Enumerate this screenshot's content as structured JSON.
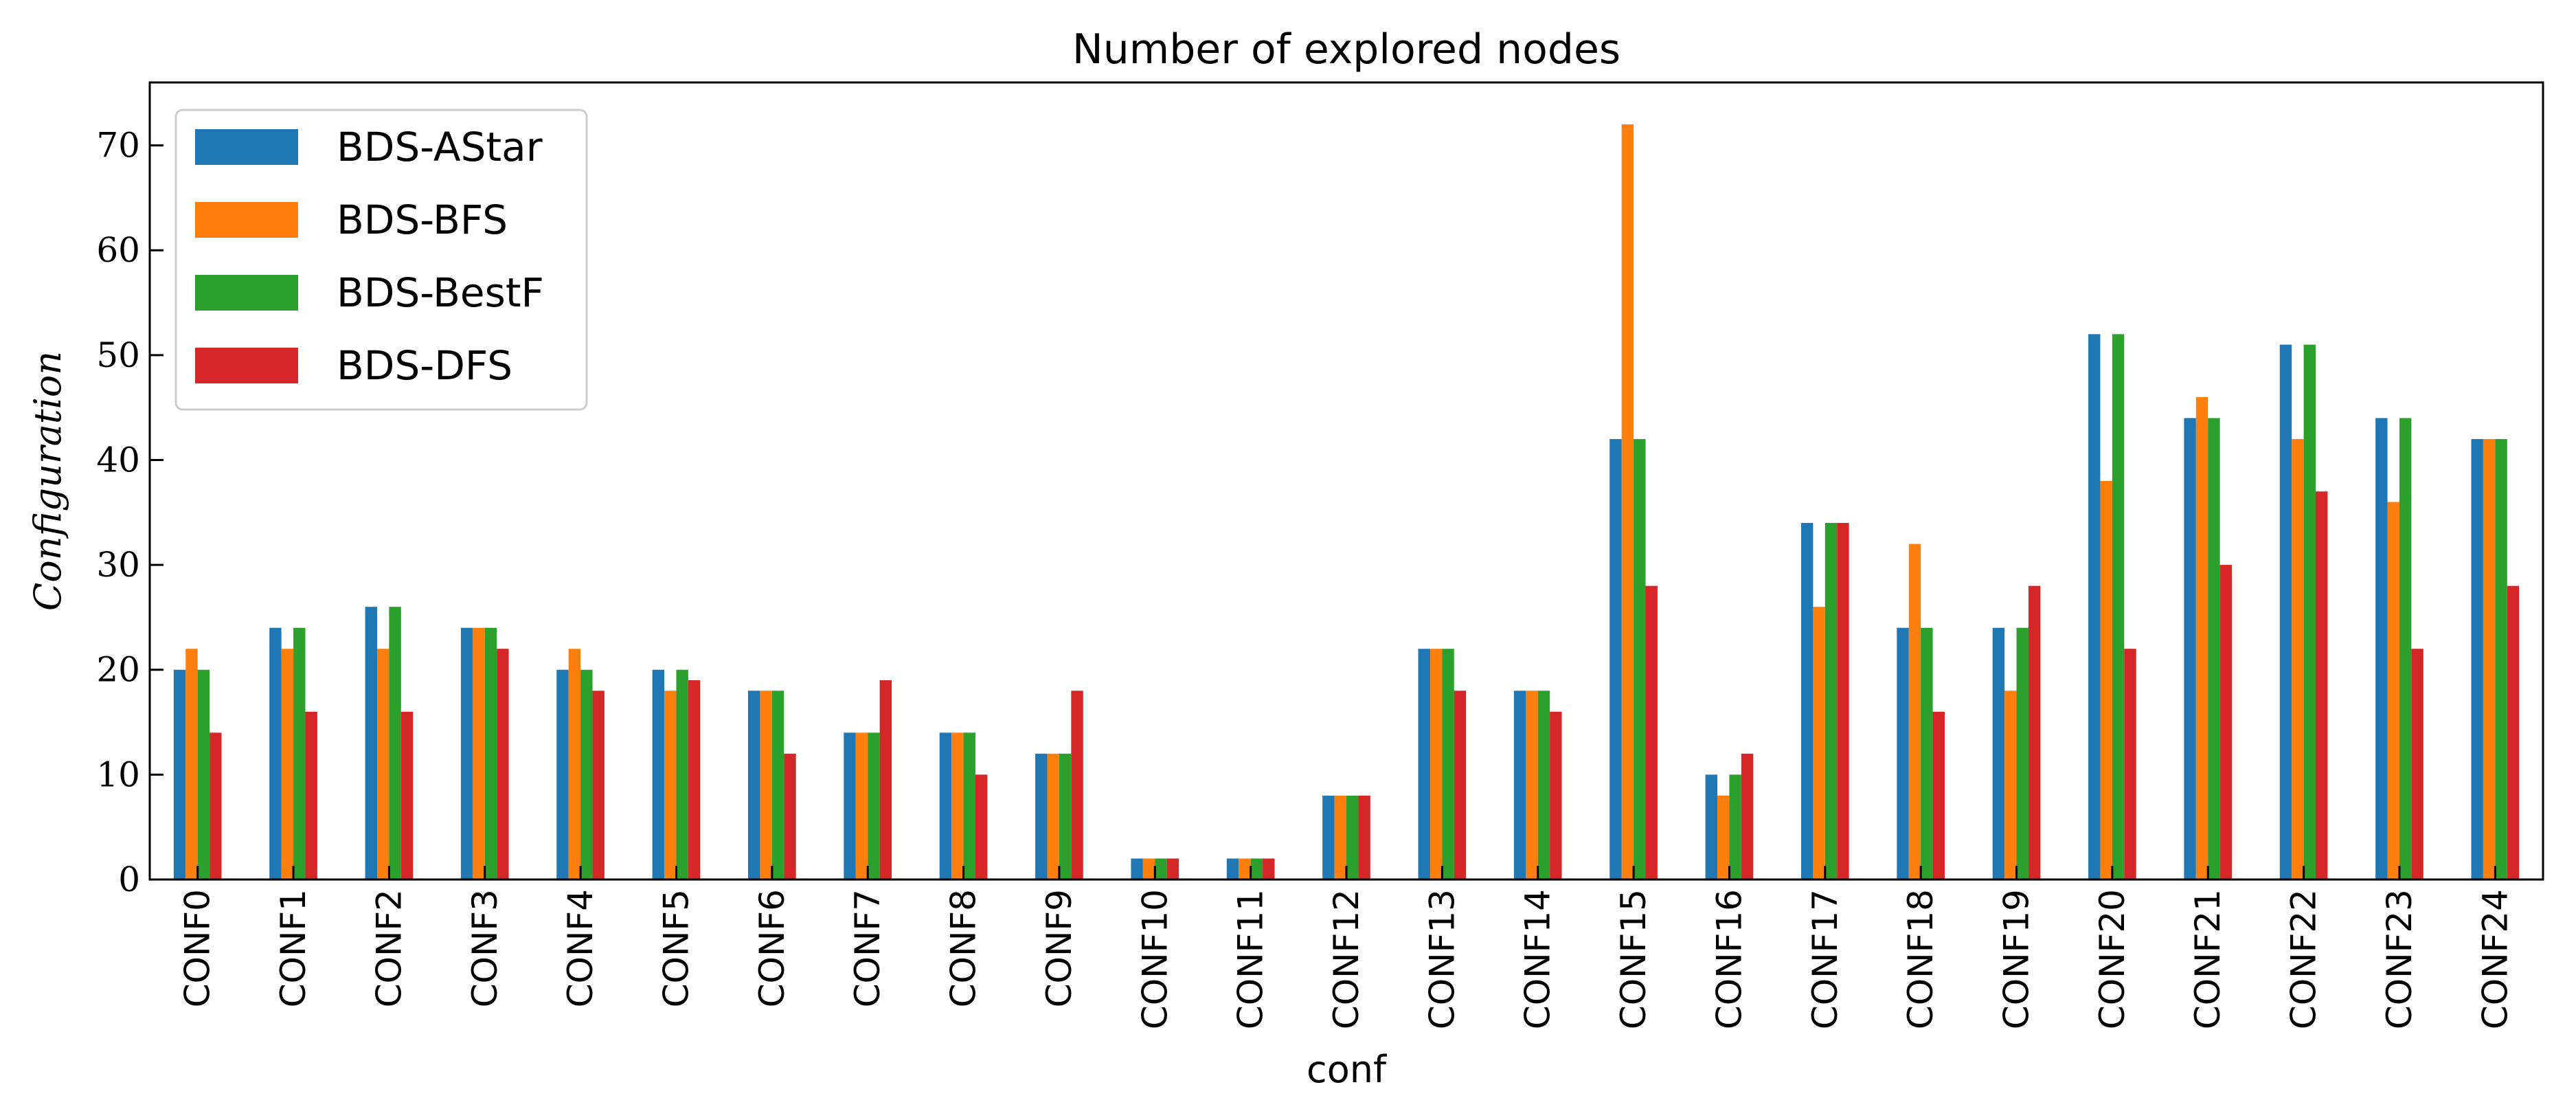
{
  "chart_data": {
    "type": "bar",
    "title": "Number of explored nodes",
    "xlabel": "conf",
    "ylabel": "Configuration",
    "ylim": [
      0,
      76
    ],
    "yticks": [
      0,
      10,
      20,
      30,
      40,
      50,
      60,
      70
    ],
    "legend_position": "top-left",
    "grid": false,
    "categories": [
      "CONF0",
      "CONF1",
      "CONF2",
      "CONF3",
      "CONF4",
      "CONF5",
      "CONF6",
      "CONF7",
      "CONF8",
      "CONF9",
      "CONF10",
      "CONF11",
      "CONF12",
      "CONF13",
      "CONF14",
      "CONF15",
      "CONF16",
      "CONF17",
      "CONF18",
      "CONF19",
      "CONF20",
      "CONF21",
      "CONF22",
      "CONF23",
      "CONF24"
    ],
    "series": [
      {
        "name": "BDS-AStar",
        "color": "#1f77b4",
        "values": [
          20,
          24,
          26,
          24,
          20,
          20,
          18,
          14,
          14,
          12,
          2,
          2,
          8,
          22,
          18,
          42,
          10,
          34,
          24,
          24,
          52,
          44,
          51,
          44,
          42
        ]
      },
      {
        "name": "BDS-BFS",
        "color": "#ff7f0e",
        "values": [
          22,
          22,
          22,
          24,
          22,
          18,
          18,
          14,
          14,
          12,
          2,
          2,
          8,
          22,
          18,
          72,
          8,
          26,
          32,
          18,
          38,
          46,
          42,
          36,
          42
        ]
      },
      {
        "name": "BDS-BestF",
        "color": "#2ca02c",
        "values": [
          20,
          24,
          26,
          24,
          20,
          20,
          18,
          14,
          14,
          12,
          2,
          2,
          8,
          22,
          18,
          42,
          10,
          34,
          24,
          24,
          52,
          44,
          51,
          44,
          42
        ]
      },
      {
        "name": "BDS-DFS",
        "color": "#d62728",
        "values": [
          14,
          16,
          16,
          22,
          18,
          19,
          12,
          19,
          10,
          18,
          2,
          2,
          8,
          18,
          16,
          28,
          12,
          34,
          16,
          28,
          22,
          30,
          37,
          22,
          28
        ]
      }
    ]
  }
}
